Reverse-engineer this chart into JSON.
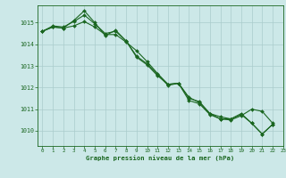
{
  "title": "Graphe pression niveau de la mer (hPa)",
  "background_color": "#cce8e8",
  "grid_color": "#aacccc",
  "line_color": "#1a6620",
  "marker_color": "#1a6620",
  "xlim": [
    -0.5,
    23
  ],
  "ylim": [
    1009.3,
    1015.8
  ],
  "yticks": [
    1010,
    1011,
    1012,
    1013,
    1014,
    1015
  ],
  "xticks": [
    0,
    1,
    2,
    3,
    4,
    5,
    6,
    7,
    8,
    9,
    10,
    11,
    12,
    13,
    14,
    15,
    16,
    17,
    18,
    19,
    20,
    21,
    22,
    23
  ],
  "series": [
    [
      1014.6,
      1014.8,
      1014.75,
      1014.85,
      1015.05,
      1014.8,
      1014.45,
      1014.45,
      1014.1,
      1013.7,
      1013.2,
      1012.65,
      1012.15,
      1012.2,
      1011.5,
      1011.35,
      1010.8,
      1010.55,
      1010.55,
      1010.75,
      1010.35,
      1009.85,
      1010.3,
      null
    ],
    [
      1014.6,
      1014.85,
      1014.8,
      1015.05,
      1015.35,
      1014.95,
      1014.5,
      1014.6,
      1014.15,
      1013.45,
      1013.1,
      1012.6,
      1012.1,
      1012.2,
      1011.55,
      1011.3,
      1010.8,
      1010.65,
      1010.55,
      1010.8,
      1010.35,
      1009.85,
      1010.3,
      null
    ],
    [
      1014.6,
      1014.8,
      1014.75,
      1015.1,
      1015.55,
      1015.0,
      1014.4,
      1014.65,
      1014.15,
      1013.4,
      1013.05,
      1012.55,
      1012.15,
      1012.2,
      1011.4,
      1011.25,
      1010.75,
      1010.55,
      1010.5,
      1010.7,
      1011.0,
      1010.9,
      1010.35,
      null
    ]
  ]
}
